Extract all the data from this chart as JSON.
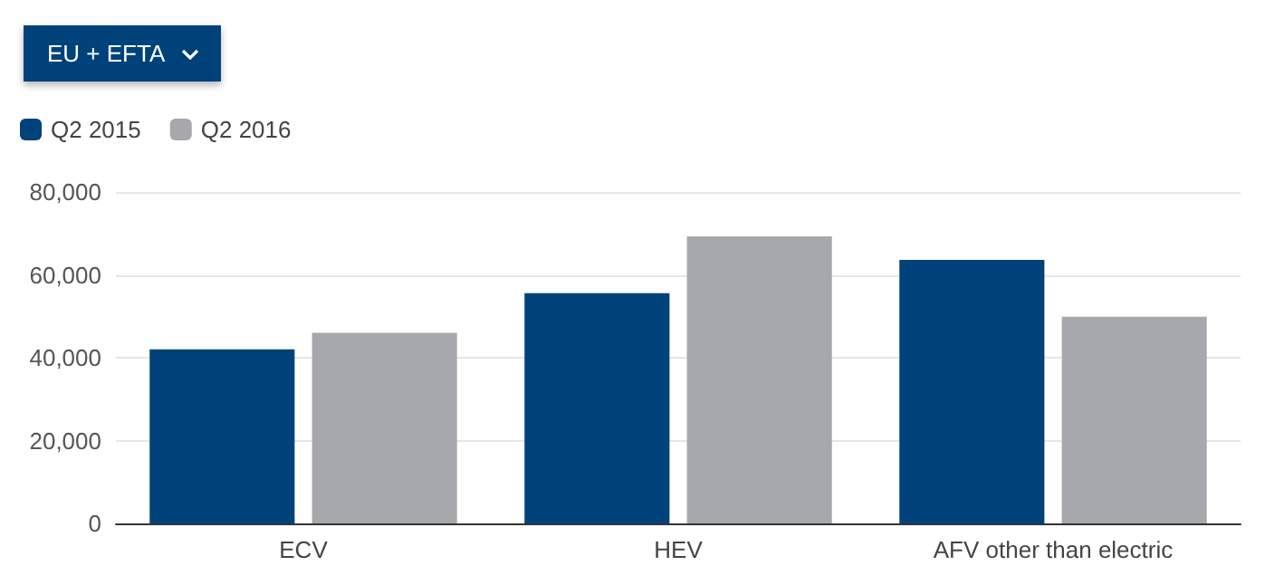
{
  "chart_data": {
    "type": "bar",
    "annotations": [
      "EU + EFTA"
    ],
    "categories": [
      "ECV",
      "HEV",
      "AFV other than electric"
    ],
    "series": [
      {
        "name": "Q2 2015",
        "color": "#00427a",
        "values": [
          42000,
          55600,
          63600
        ]
      },
      {
        "name": "Q2 2016",
        "color": "#a7a8ab",
        "values": [
          46000,
          69300,
          49900
        ]
      }
    ],
    "ylim": [
      0,
      80000
    ],
    "yticks": [
      0,
      {
        "value": 20000,
        "label": "20,000"
      },
      {
        "value": 40000,
        "label": "40,000"
      },
      {
        "value": 60000,
        "label": "60,000"
      },
      {
        "value": 80000,
        "label": "80,000"
      }
    ],
    "grid": "y",
    "legend": "top left"
  }
}
